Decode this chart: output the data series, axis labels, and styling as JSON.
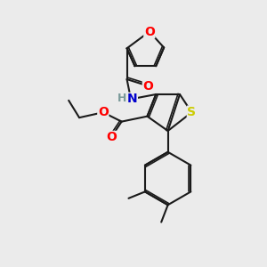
{
  "bg_color": "#ebebeb",
  "bond_color": "#1a1a1a",
  "bond_width": 1.5,
  "atom_colors": {
    "O": "#ff0000",
    "N": "#0000cd",
    "S": "#cccc00",
    "C": "#1a1a1a",
    "H": "#7a9a9a"
  },
  "font_size": 9,
  "figsize": [
    3.0,
    3.0
  ],
  "dpi": 100
}
